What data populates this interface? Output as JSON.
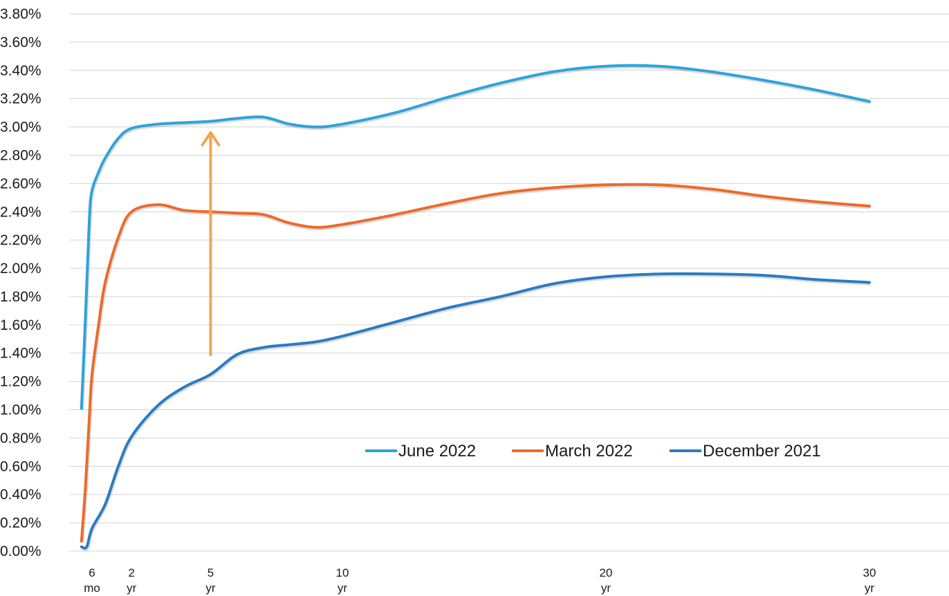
{
  "chart_data": {
    "type": "line",
    "title": "",
    "xlabel": "",
    "ylabel": "",
    "ylim": [
      0,
      0.038
    ],
    "y_tick_values": [
      0,
      0.002,
      0.004,
      0.006,
      0.008,
      0.01,
      0.012,
      0.014,
      0.016,
      0.018,
      0.02,
      0.022,
      0.024,
      0.026,
      0.028,
      0.03,
      0.032,
      0.034,
      0.036,
      0.038
    ],
    "y_tick_labels": [
      "0.00%",
      "0.20%",
      "0.40%",
      "0.60%",
      "0.80%",
      "1.00%",
      "1.20%",
      "1.40%",
      "1.60%",
      "1.80%",
      "2.00%",
      "2.20%",
      "2.40%",
      "2.60%",
      "2.80%",
      "3.00%",
      "3.20%",
      "3.40%",
      "3.60%",
      "3.80%"
    ],
    "x_unit": "years to maturity",
    "x_ticks": [
      {
        "x": 0.5,
        "line1": "6",
        "line2": "mo"
      },
      {
        "x": 2,
        "line1": "2",
        "line2": "yr"
      },
      {
        "x": 5,
        "line1": "5",
        "line2": "yr"
      },
      {
        "x": 10,
        "line1": "10",
        "line2": "yr"
      },
      {
        "x": 20,
        "line1": "20",
        "line2": "yr"
      },
      {
        "x": 30,
        "line1": "30",
        "line2": "yr"
      }
    ],
    "grid": true,
    "legend_position": "lower-right",
    "series": [
      {
        "name": "June 2022",
        "color": "#2ea3da",
        "points": [
          [
            0.1,
            0.0101
          ],
          [
            0.25,
            0.0165
          ],
          [
            0.4,
            0.0235
          ],
          [
            0.5,
            0.0255
          ],
          [
            0.75,
            0.0268
          ],
          [
            1,
            0.0278
          ],
          [
            1.5,
            0.0292
          ],
          [
            2,
            0.0299
          ],
          [
            3,
            0.0302
          ],
          [
            4,
            0.0303
          ],
          [
            5,
            0.0304
          ],
          [
            6,
            0.0306
          ],
          [
            7,
            0.0307
          ],
          [
            8,
            0.0302
          ],
          [
            9,
            0.03
          ],
          [
            10,
            0.0302
          ],
          [
            12,
            0.031
          ],
          [
            14,
            0.0321
          ],
          [
            16,
            0.0331
          ],
          [
            18,
            0.0339
          ],
          [
            20,
            0.0343
          ],
          [
            22,
            0.0343
          ],
          [
            24,
            0.0339
          ],
          [
            26,
            0.0333
          ],
          [
            28,
            0.0326
          ],
          [
            30,
            0.0318
          ]
        ]
      },
      {
        "name": "March 2022",
        "color": "#ee6a2a",
        "points": [
          [
            0.1,
            0.0007
          ],
          [
            0.25,
            0.0045
          ],
          [
            0.4,
            0.0095
          ],
          [
            0.5,
            0.0125
          ],
          [
            0.75,
            0.016
          ],
          [
            1,
            0.019
          ],
          [
            1.5,
            0.0222
          ],
          [
            2,
            0.024
          ],
          [
            3,
            0.0245
          ],
          [
            4,
            0.0241
          ],
          [
            5,
            0.024
          ],
          [
            6,
            0.0239
          ],
          [
            7,
            0.0238
          ],
          [
            8,
            0.0232
          ],
          [
            9,
            0.0229
          ],
          [
            10,
            0.0231
          ],
          [
            12,
            0.0238
          ],
          [
            14,
            0.0246
          ],
          [
            16,
            0.0253
          ],
          [
            18,
            0.0257
          ],
          [
            20,
            0.0259
          ],
          [
            22,
            0.0259
          ],
          [
            24,
            0.0256
          ],
          [
            26,
            0.0251
          ],
          [
            28,
            0.0247
          ],
          [
            30,
            0.0244
          ]
        ]
      },
      {
        "name": "December 2021",
        "color": "#2a7bc2",
        "points": [
          [
            0.1,
            0.0003
          ],
          [
            0.3,
            0.0003
          ],
          [
            0.5,
            0.0016
          ],
          [
            1,
            0.0033
          ],
          [
            1.5,
            0.006
          ],
          [
            2,
            0.0081
          ],
          [
            3,
            0.0103
          ],
          [
            4,
            0.0116
          ],
          [
            5,
            0.0125
          ],
          [
            6,
            0.0139
          ],
          [
            7,
            0.0144
          ],
          [
            8,
            0.0146
          ],
          [
            9,
            0.0148
          ],
          [
            10,
            0.0152
          ],
          [
            12,
            0.0162
          ],
          [
            14,
            0.0172
          ],
          [
            16,
            0.018
          ],
          [
            18,
            0.0189
          ],
          [
            20,
            0.0194
          ],
          [
            22,
            0.0196
          ],
          [
            24,
            0.0196
          ],
          [
            26,
            0.0195
          ],
          [
            28,
            0.0192
          ],
          [
            30,
            0.019
          ]
        ]
      }
    ],
    "annotations": [
      {
        "type": "arrow",
        "color": "#f4a450",
        "x": 5,
        "y_from": 0.0138,
        "y_to": 0.0296
      }
    ]
  }
}
